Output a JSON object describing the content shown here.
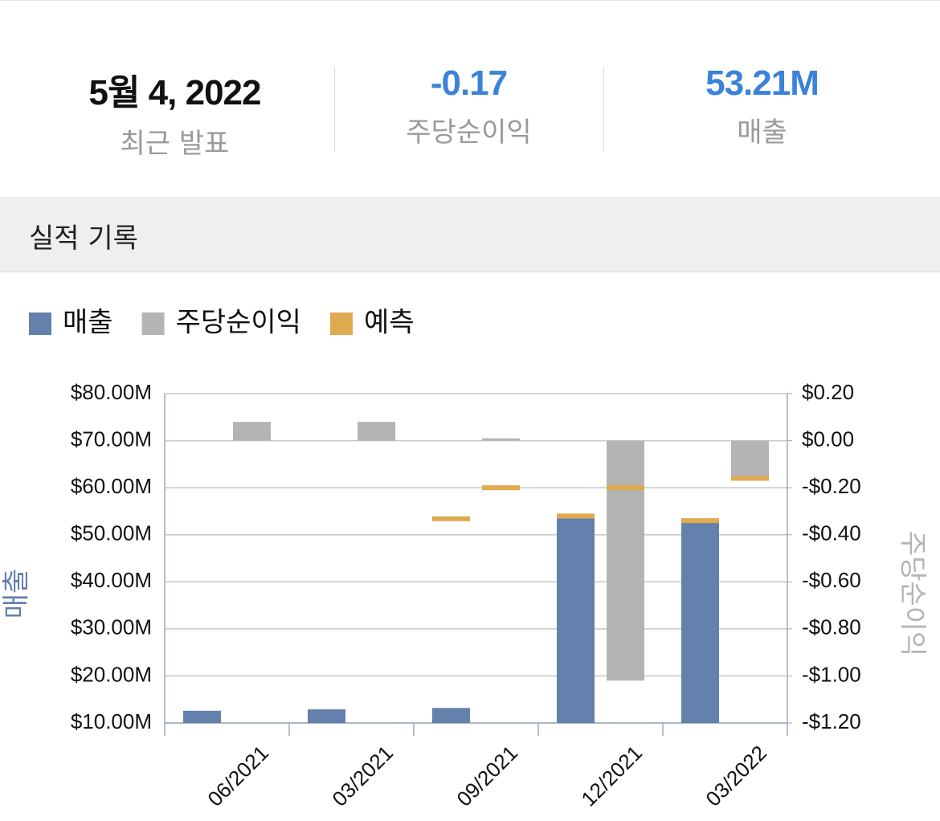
{
  "header": {
    "stats": [
      {
        "value": "5월 4, 2022",
        "label": "최근 발표"
      },
      {
        "value": "-0.17",
        "label": "주당순이익"
      },
      {
        "value": "53.21M",
        "label": "매출"
      }
    ]
  },
  "section_title": "실적 기록",
  "chart_data": {
    "type": "bar",
    "categories": [
      "06/2021",
      "03/2021",
      "09/2021",
      "12/2021",
      "03/2022"
    ],
    "series": [
      {
        "name": "매출",
        "color": "#6480ac",
        "values": [
          12.6,
          12.9,
          13.2,
          53.5,
          53.2
        ]
      },
      {
        "name": "주당순이익",
        "color": "#b4b4b4",
        "axis": "y2",
        "values": [
          0.08,
          0.08,
          0.01,
          -1.02,
          -0.17
        ]
      },
      {
        "name": "예측",
        "color": "#e0aa50",
        "values": [
          null,
          null,
          53.4,
          54.0,
          53.0
        ],
        "y2_values": [
          null,
          null,
          -0.2,
          -0.2,
          -0.16
        ]
      }
    ],
    "ylabel": "매출",
    "y2label": "주당순이익",
    "ylim": [
      10,
      80
    ],
    "yticks": [
      {
        "value": 10,
        "label": "$10.00M"
      },
      {
        "value": 20,
        "label": "$20.00M"
      },
      {
        "value": 30,
        "label": "$30.00M"
      },
      {
        "value": 40,
        "label": "$40.00M"
      },
      {
        "value": 50,
        "label": "$50.00M"
      },
      {
        "value": 60,
        "label": "$60.00M"
      },
      {
        "value": 70,
        "label": "$70.00M"
      },
      {
        "value": 80,
        "label": "$80.00M"
      }
    ],
    "y2lim": [
      -1.2,
      0.2
    ],
    "y2ticks": [
      {
        "value": -1.2,
        "label": "-$1.20"
      },
      {
        "value": -1.0,
        "label": "-$1.00"
      },
      {
        "value": -0.8,
        "label": "-$0.80"
      },
      {
        "value": -0.6,
        "label": "-$0.60"
      },
      {
        "value": -0.4,
        "label": "-$0.40"
      },
      {
        "value": -0.2,
        "label": "-$0.20"
      },
      {
        "value": 0,
        "label": "$0.00"
      },
      {
        "value": 0.2,
        "label": "$0.20"
      }
    ],
    "grid": true,
    "legend": "top-left"
  }
}
